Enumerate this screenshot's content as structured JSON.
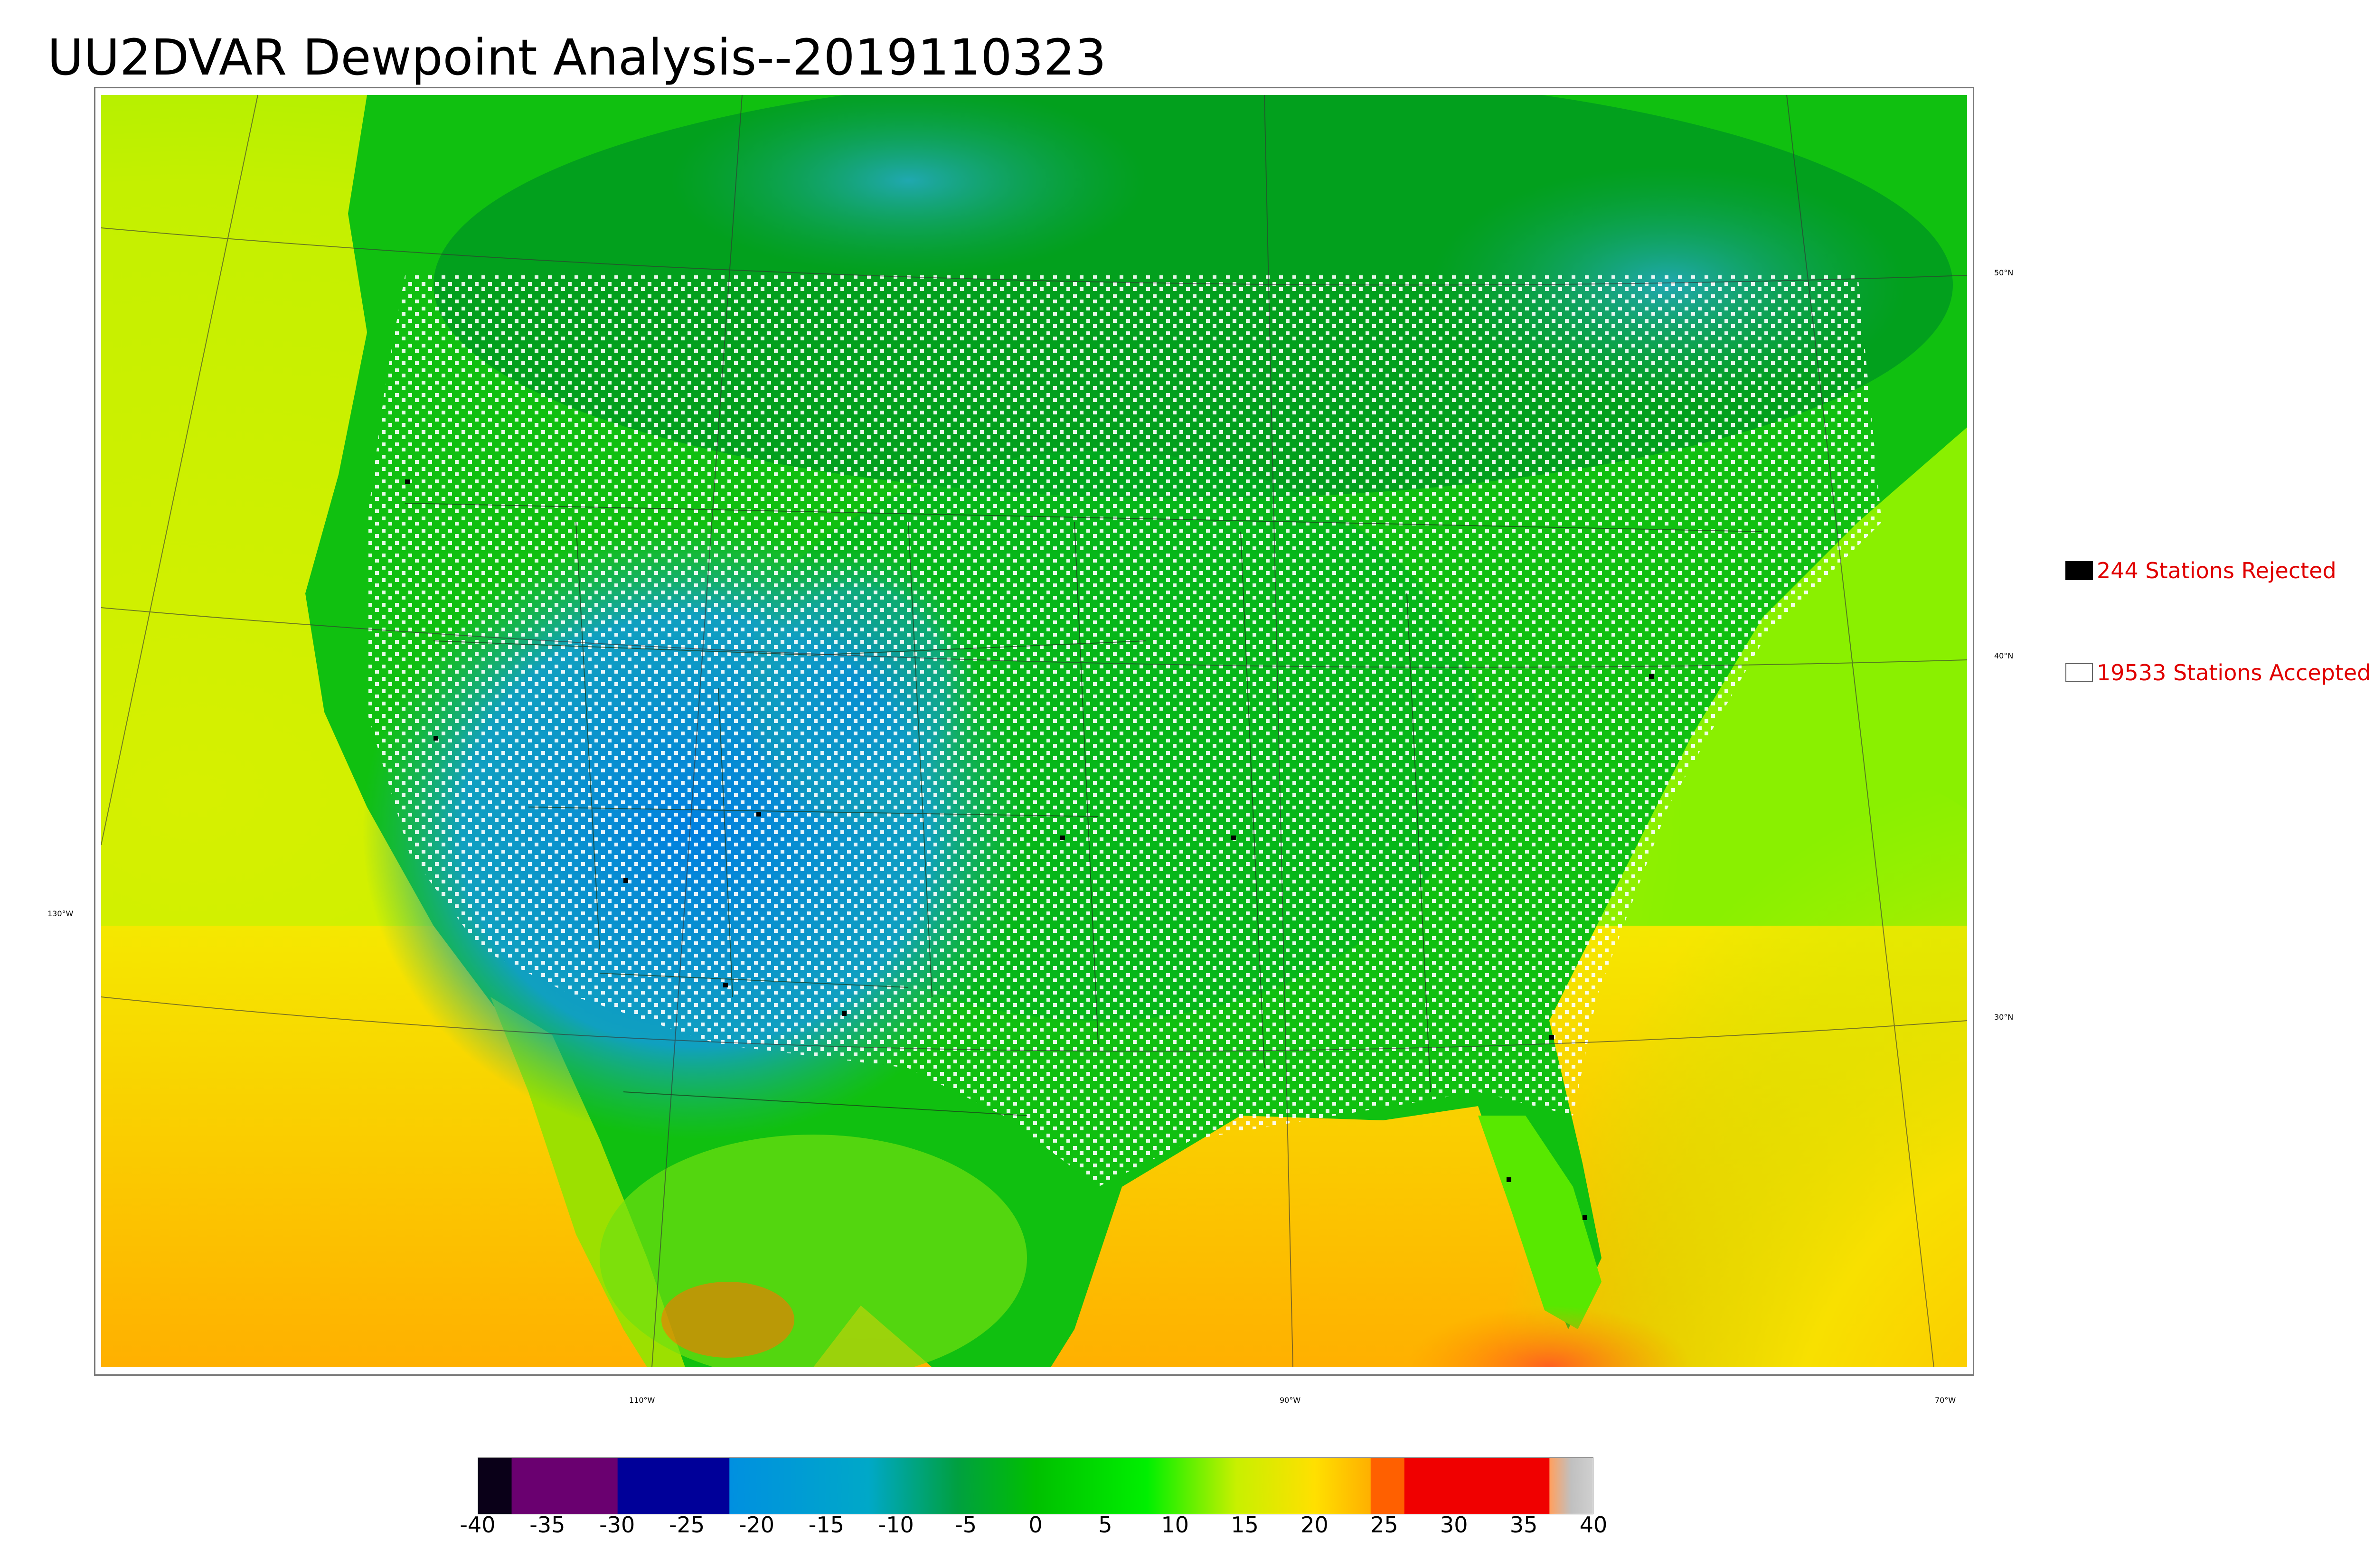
{
  "title": "UU2DVAR Dewpoint Analysis--2019110323",
  "legend": {
    "rejected": {
      "label": "244 Stations Rejected",
      "color": "#000000"
    },
    "accepted": {
      "label": "19533 Stations Accepted",
      "color": "#ffffff"
    }
  },
  "graticule": {
    "latitudes": [
      "50°N",
      "40°N",
      "30°N"
    ],
    "longitudes": [
      "130°W",
      "110°W",
      "90°W",
      "70°W"
    ]
  },
  "colorbar": {
    "ticks": [
      "-40",
      "-35",
      "-30",
      "-25",
      "-20",
      "-15",
      "-10",
      "-5",
      "0",
      "5",
      "10",
      "15",
      "20",
      "25",
      "30",
      "35",
      "40"
    ],
    "range": [
      -40,
      40
    ],
    "colors": [
      "#0a0018",
      "#6a0070",
      "#000099",
      "#0090e0",
      "#00a8c8",
      "#00a040",
      "#00c000",
      "#00f000",
      "#c8f000",
      "#ffe000",
      "#ffb000",
      "#ff6000",
      "#f00000",
      "#ffa060",
      "#c0c0c0"
    ]
  }
}
